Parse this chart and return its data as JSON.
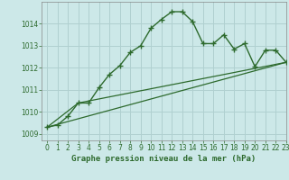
{
  "title": "Graphe pression niveau de la mer (hPa)",
  "background_color": "#cce8e8",
  "plot_bg_color": "#cce8e8",
  "line_color": "#2d6a2d",
  "grid_color": "#b0d0d0",
  "xlim": [
    -0.5,
    23
  ],
  "ylim": [
    1008.7,
    1015.0
  ],
  "yticks": [
    1009,
    1010,
    1011,
    1012,
    1013,
    1014
  ],
  "xticks": [
    0,
    1,
    2,
    3,
    4,
    5,
    6,
    7,
    8,
    9,
    10,
    11,
    12,
    13,
    14,
    15,
    16,
    17,
    18,
    19,
    20,
    21,
    22,
    23
  ],
  "line1_x": [
    0,
    1,
    2,
    3,
    4,
    5,
    6,
    7,
    8,
    9,
    10,
    11,
    12,
    13,
    14,
    15,
    16,
    17,
    18,
    19,
    20,
    21,
    22,
    23
  ],
  "line1_y": [
    1009.3,
    1009.4,
    1009.8,
    1010.4,
    1010.4,
    1011.1,
    1011.7,
    1012.1,
    1012.7,
    1013.0,
    1013.8,
    1014.2,
    1014.55,
    1014.55,
    1014.1,
    1013.1,
    1013.1,
    1013.5,
    1012.85,
    1013.1,
    1012.05,
    1012.8,
    1012.8,
    1012.25
  ],
  "line2_x": [
    0,
    23
  ],
  "line2_y": [
    1009.3,
    1012.25
  ],
  "line3_x": [
    0,
    3,
    23
  ],
  "line3_y": [
    1009.3,
    1010.4,
    1012.25
  ],
  "title_fontsize": 6.5,
  "tick_fontsize": 5.5,
  "label_color": "#2d6a2d"
}
